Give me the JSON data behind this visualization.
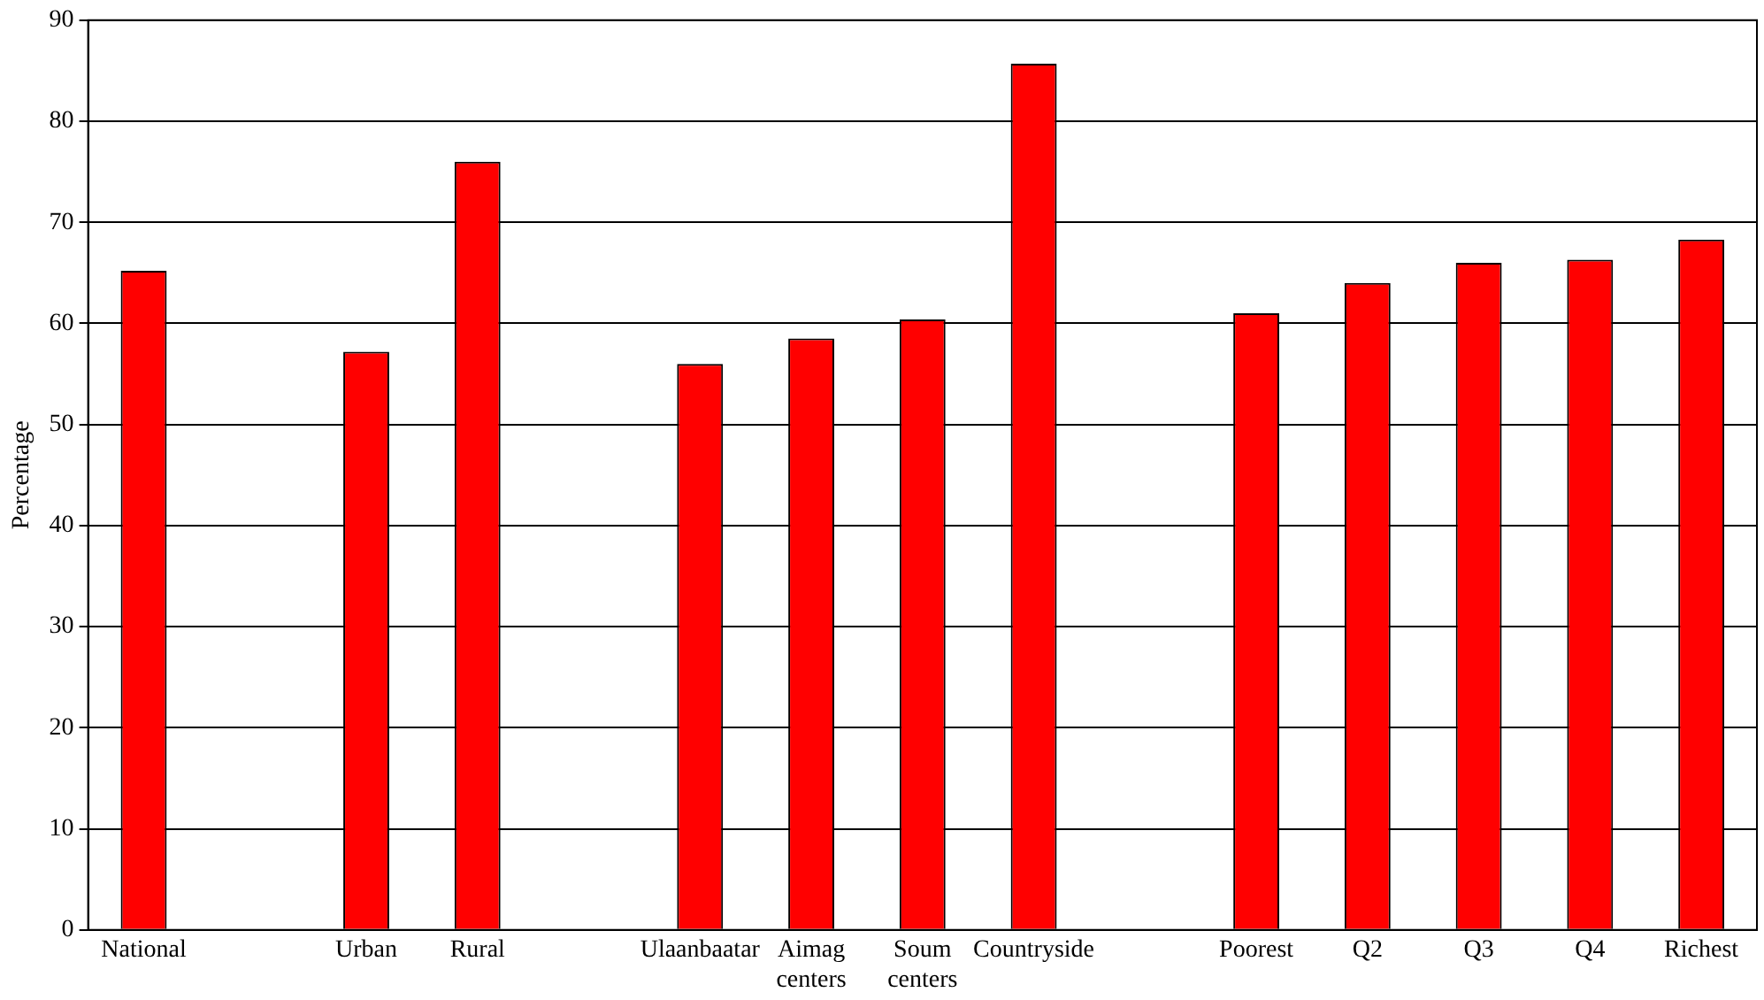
{
  "chart_data": {
    "type": "bar",
    "ylabel": "Percentage",
    "categories": [
      "National",
      null,
      "Urban",
      "Rural",
      null,
      "Ulaanbaatar",
      "Aimag\ncenters",
      "Soum\ncenters",
      "Countryside",
      null,
      "Poorest",
      "Q2",
      "Q3",
      "Q4",
      "Richest"
    ],
    "values": [
      65.2,
      null,
      57.2,
      76,
      null,
      56,
      58.5,
      60.4,
      85.7,
      null,
      61,
      64,
      66,
      66.3,
      68.3
    ],
    "color": "#ff0000",
    "ylim": [
      0,
      90
    ],
    "yticks": [
      0,
      10,
      20,
      30,
      40,
      50,
      60,
      70,
      80,
      90
    ],
    "grid": "y",
    "legend": false
  }
}
